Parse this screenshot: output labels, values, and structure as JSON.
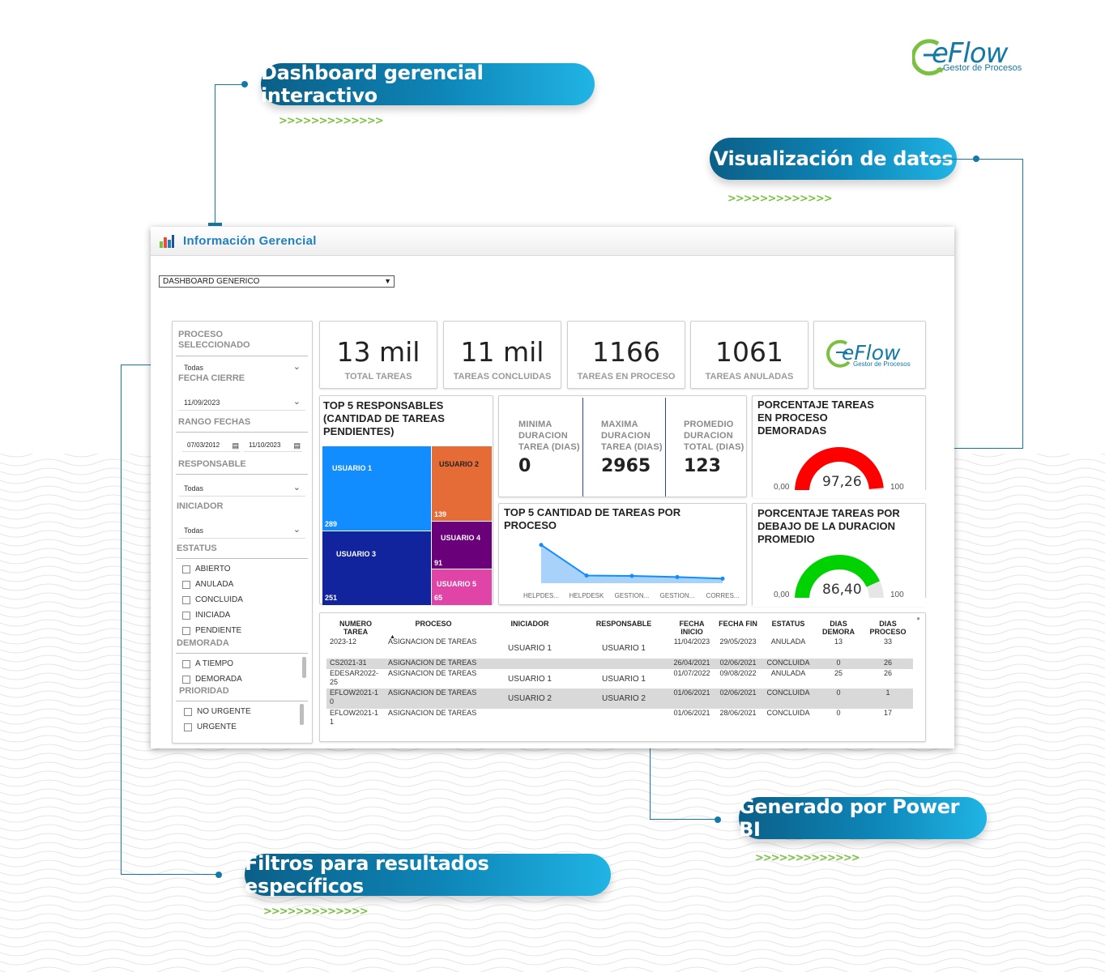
{
  "callouts": {
    "dashboard": "Dashboard gerencial interactivo",
    "visualizacion": "Visualización de datos",
    "powerbi": "Generado por Power BI",
    "filtros": "Filtros para resultados específicos",
    "chevrons": ">>>>>>>>>>>>>"
  },
  "brand": {
    "name": "eFlow",
    "tagline": "Gestor de Procesos",
    "green": "#7ac143",
    "blue": "#1479a7"
  },
  "window": {
    "title": "Información Gerencial",
    "dashboard_select": "DASHBOARD GENERICO"
  },
  "filters": {
    "proceso_label": "PROCESO SELECCIONADO",
    "proceso_value": "Todas",
    "fecha_cierre_label": "FECHA CIERRE",
    "fecha_cierre_value": "11/09/2023",
    "rango_label": "RANGO FECHAS",
    "rango_from": "07/03/2012",
    "rango_to": "11/10/2023",
    "responsable_label": "RESPONSABLE",
    "responsable_value": "Todas",
    "iniciador_label": "INICIADOR",
    "iniciador_value": "Todas",
    "estatus_label": "ESTATUS",
    "estatus_options": [
      "ABIERTO",
      "ANULADA",
      "CONCLUIDA",
      "INICIADA",
      "PENDIENTE"
    ],
    "demorada_label": "DEMORADA",
    "demorada_options": [
      "A TIEMPO",
      "DEMORADA"
    ],
    "prioridad_label": "PRIORIDAD",
    "prioridad_options": [
      "NO URGENTE",
      "URGENTE"
    ]
  },
  "kpis": [
    {
      "value": "13 mil",
      "label": "TOTAL TAREAS"
    },
    {
      "value": "11 mil",
      "label": "TAREAS CONCLUIDAS"
    },
    {
      "value": "1166",
      "label": "TAREAS EN PROCESO"
    },
    {
      "value": "1061",
      "label": "TAREAS ANULADAS"
    }
  ],
  "treemap": {
    "title": "TOP 5 RESPONSABLES (CANTIDAD DE TAREAS PENDIENTES)",
    "items": [
      {
        "name": "USUARIO 1",
        "value": "289",
        "color": "#118dff"
      },
      {
        "name": "USUARIO 2",
        "value": "139",
        "color": "#e66c37"
      },
      {
        "name": "USUARIO 3",
        "value": "251",
        "color": "#12239e"
      },
      {
        "name": "USUARIO 4",
        "value": "91",
        "color": "#6b007b"
      },
      {
        "name": "USUARIO 5",
        "value": "65",
        "color": "#e044a7"
      }
    ]
  },
  "durations": [
    {
      "label": "MINIMA DURACION TAREA (DIAS)",
      "value": "0"
    },
    {
      "label": "MAXIMA DURACION TAREA (DIAS)",
      "value": "2965"
    },
    {
      "label": "PROMEDIO DURACION TOTAL (DIAS)",
      "value": "123"
    }
  ],
  "gauge_demoradas": {
    "title": "PORCENTAJE TAREAS EN PROCESO DEMORADAS",
    "value": "97,26",
    "min": "0,00",
    "max": "100",
    "fraction": 0.9726,
    "color": "#ff0000"
  },
  "gauge_debajo": {
    "title": "PORCENTAJE TAREAS POR DEBAJO DE LA DURACION PROMEDIO",
    "value": "86,40",
    "min": "0,00",
    "max": "100",
    "fraction": 0.864,
    "color": "#00d100"
  },
  "chart_data": {
    "type": "area",
    "title": "TOP 5 CANTIDAD DE TAREAS POR PROCESO",
    "categories": [
      "HELPDES...",
      "HELPDESK",
      "GESTION...",
      "GESTION...",
      "CORRES..."
    ],
    "values": [
      100,
      20,
      19,
      16,
      12
    ],
    "ylim": [
      0,
      110
    ],
    "grid": false
  },
  "table": {
    "columns": [
      "NUMERO TAREA",
      "PROCESO",
      "INICIADOR",
      "RESPONSABLE",
      "FECHA INICIO",
      "FECHA FIN",
      "ESTATUS",
      "DIAS DEMORA",
      "DIAS PROCESO"
    ],
    "rows": [
      [
        "2023-12",
        "ASIGNACION DE TAREAS",
        "USUARIO 1",
        "USUARIO 1",
        "11/04/2023",
        "29/05/2023",
        "ANULADA",
        "13",
        "33"
      ],
      [
        "CS2021-31",
        "ASIGNACION DE TAREAS",
        "",
        "",
        "26/04/2021",
        "02/06/2021",
        "CONCLUIDA",
        "0",
        "26"
      ],
      [
        "EDESAR2022-25",
        "ASIGNACION DE TAREAS",
        "USUARIO 1",
        "USUARIO 1",
        "01/07/2022",
        "09/08/2022",
        "ANULADA",
        "25",
        "26"
      ],
      [
        "EFLOW2021-10",
        "ASIGNACION DE TAREAS",
        "USUARIO 2",
        "USUARIO 2",
        "01/06/2021",
        "02/06/2021",
        "CONCLUIDA",
        "0",
        "1"
      ],
      [
        "EFLOW2021-11",
        "ASIGNACION DE TAREAS",
        "",
        "",
        "01/06/2021",
        "28/06/2021",
        "CONCLUIDA",
        "0",
        "17"
      ]
    ]
  }
}
